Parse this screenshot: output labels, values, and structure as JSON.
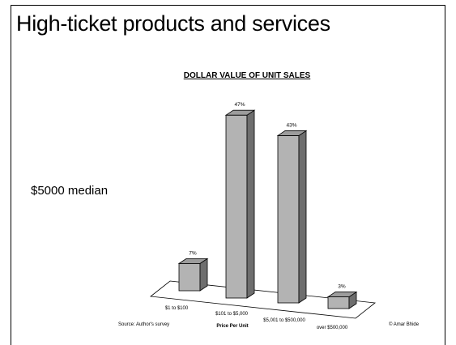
{
  "slide": {
    "title": "High-ticket products and services",
    "side_note": "$5000 median",
    "source": "Source: Author's survey",
    "copyright": "© Amar Bhide"
  },
  "chart_data": {
    "type": "bar",
    "title": "DOLLAR VALUE OF UNIT SALES",
    "xlabel": "Price Per Unit",
    "ylabel": "",
    "categories": [
      "$1 to $100",
      "$101 to $5,000",
      "$5,001 to $500,000",
      "over $500,000"
    ],
    "values": [
      7,
      47,
      43,
      3
    ],
    "value_labels": [
      "7%",
      "47%",
      "43%",
      "3%"
    ],
    "ylim": [
      0,
      50
    ],
    "grid": false,
    "legend": "none",
    "bar_color": "#b3b3b3",
    "bar_side_color": "#6e6e6e",
    "bar_top_color": "#9c9c9c"
  }
}
